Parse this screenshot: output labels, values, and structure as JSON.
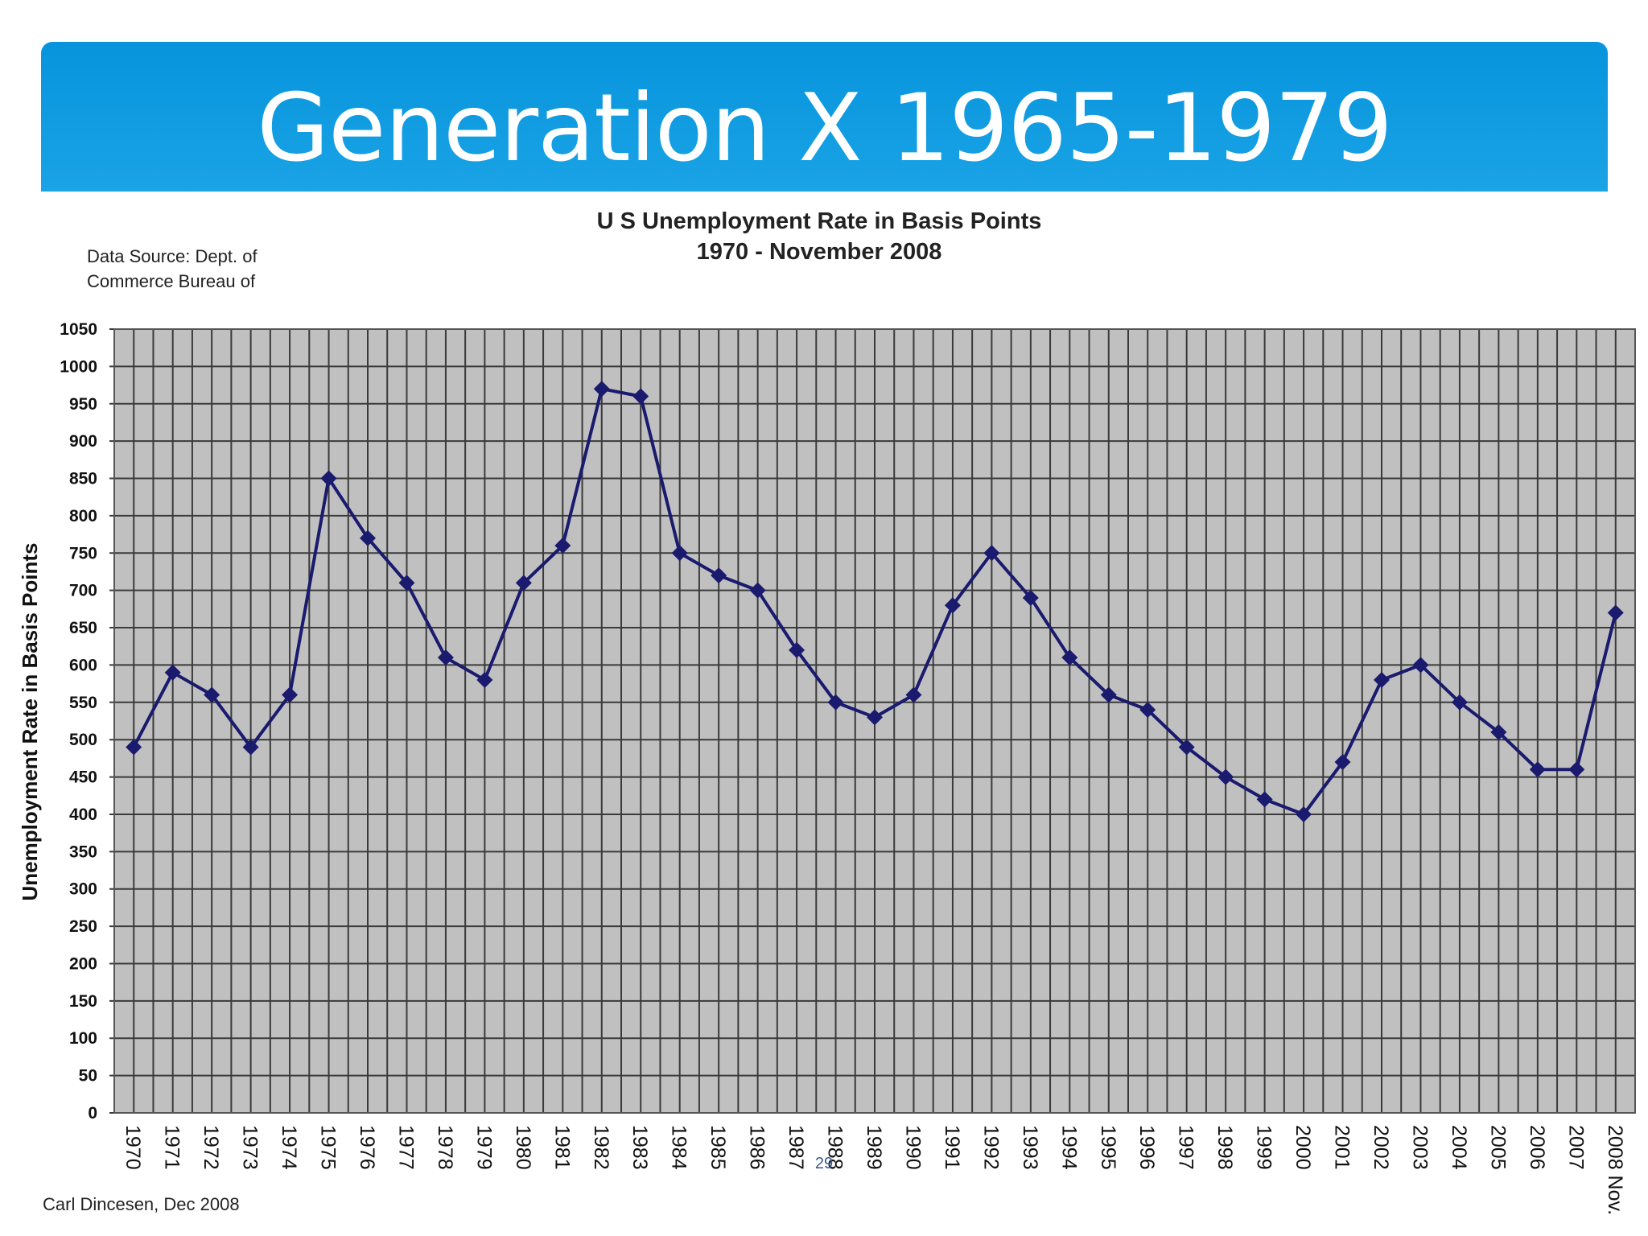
{
  "slide": {
    "title": "Generation X 1965-1979",
    "page_number": "29",
    "credit": "Carl Dincesen, Dec 2008",
    "source_note_line1": "Data Source: Dept. of",
    "source_note_line2": "Commerce Bureau of"
  },
  "colors": {
    "banner": "#0794dc",
    "plot_bg": "#c0c0c0",
    "grid": "#3a3a3a",
    "series": "#1a1a6e"
  },
  "chart_data": {
    "type": "line",
    "title": "U S Unemployment Rate in Basis Points",
    "subtitle": "1970 - November 2008",
    "xlabel": "",
    "ylabel": "Unemployment Rate in Basis Points",
    "ylim": [
      0,
      1050
    ],
    "ystep": 50,
    "grid": true,
    "categories": [
      "1970",
      "1971",
      "1972",
      "1973",
      "1974",
      "1975",
      "1976",
      "1977",
      "1978",
      "1979",
      "1980",
      "1981",
      "1982",
      "1983",
      "1984",
      "1985",
      "1986",
      "1987",
      "1988",
      "1989",
      "1990",
      "1991",
      "1992",
      "1993",
      "1994",
      "1995",
      "1996",
      "1997",
      "1998",
      "1999",
      "2000",
      "2001",
      "2002",
      "2003",
      "2004",
      "2005",
      "2006",
      "2007",
      "2008 Nov."
    ],
    "series": [
      {
        "values": [
          490,
          590,
          560,
          490,
          560,
          850,
          770,
          710,
          610,
          580,
          710,
          760,
          970,
          960,
          750,
          720,
          700,
          620,
          550,
          530,
          560,
          680,
          750,
          690,
          610,
          560,
          540,
          490,
          450,
          420,
          400,
          470,
          580,
          600,
          550,
          510,
          460,
          460,
          670
        ]
      }
    ]
  }
}
